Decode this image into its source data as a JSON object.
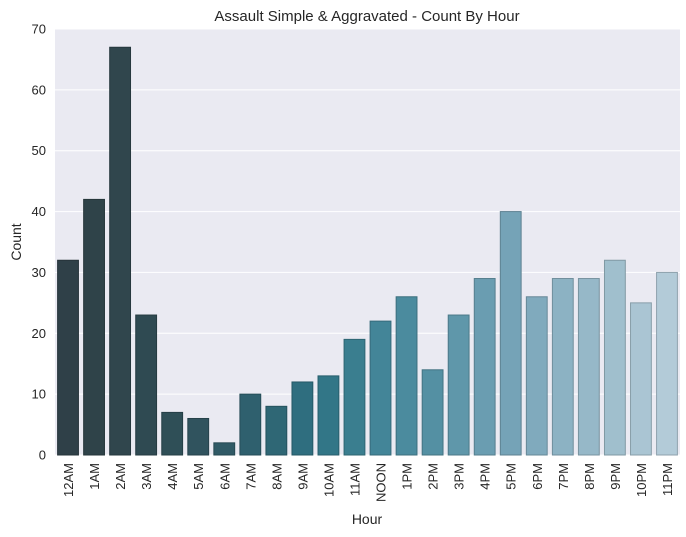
{
  "chart_data": {
    "type": "bar",
    "title": "Assault  Simple & Aggravated - Count By Hour",
    "xlabel": "Hour",
    "ylabel": "Count",
    "ylim": [
      0,
      70
    ],
    "yticks": [
      0,
      10,
      20,
      30,
      40,
      50,
      60,
      70
    ],
    "grid": true,
    "categories": [
      "12AM",
      "1AM",
      "2AM",
      "3AM",
      "4AM",
      "5AM",
      "6AM",
      "7AM",
      "8AM",
      "9AM",
      "10AM",
      "11AM",
      "NOON",
      "1PM",
      "2PM",
      "3PM",
      "4PM",
      "5PM",
      "6PM",
      "7PM",
      "8PM",
      "9PM",
      "10PM",
      "11PM"
    ],
    "values": [
      32,
      42,
      67,
      23,
      7,
      6,
      2,
      10,
      8,
      12,
      13,
      19,
      22,
      26,
      14,
      23,
      29,
      40,
      26,
      29,
      29,
      32,
      25,
      30
    ],
    "colors": [
      "#2f4048",
      "#2f4349",
      "#30464d",
      "#2f4a52",
      "#2f4f57",
      "#30535e",
      "#305a66",
      "#2f606e",
      "#2f6775",
      "#2f6e7f",
      "#327687",
      "#3a7e8f",
      "#438598",
      "#4b8b9e",
      "#5490a3",
      "#5f97aa",
      "#6a9db1",
      "#75a3b7",
      "#80aabd",
      "#8cb2c3",
      "#96b8c8",
      "#a0bfcd",
      "#aac5d3",
      "#b3cbd8"
    ]
  }
}
